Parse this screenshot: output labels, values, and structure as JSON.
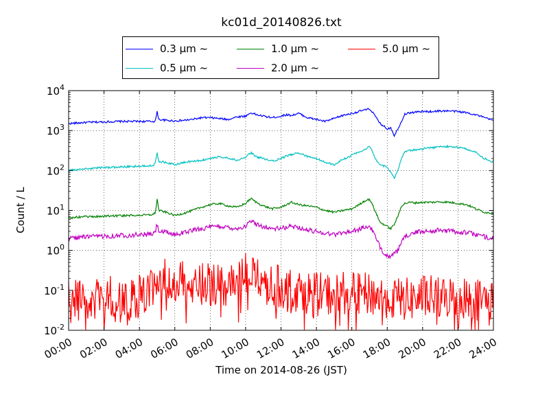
{
  "chart_data": {
    "type": "line",
    "title": "kc01d_20140826.txt",
    "xlabel": "Time on 2014-08-26 (JST)",
    "ylabel": "Count / L",
    "x_ticks": [
      "00:00",
      "02:00",
      "04:00",
      "06:00",
      "08:00",
      "10:00",
      "12:00",
      "14:00",
      "16:00",
      "18:00",
      "20:00",
      "22:00",
      "24:00"
    ],
    "x_range_hours": [
      0,
      24
    ],
    "yscale": "log",
    "ylim": [
      0.01,
      10000
    ],
    "y_ticks": [
      {
        "base": "10",
        "exp": "-2"
      },
      {
        "base": "10",
        "exp": "-1"
      },
      {
        "base": "10",
        "exp": "0"
      },
      {
        "base": "10",
        "exp": "1"
      },
      {
        "base": "10",
        "exp": "2"
      },
      {
        "base": "10",
        "exp": "3"
      },
      {
        "base": "10",
        "exp": "4"
      }
    ],
    "grid": true,
    "legend_position": "top-center",
    "series": [
      {
        "name": "0.3 μm ~",
        "color": "#0000ff",
        "x": [
          0,
          1,
          2,
          3,
          4,
          4.5,
          4.8,
          4.9,
          5.0,
          5.1,
          5.5,
          6,
          6.5,
          7,
          7.5,
          8,
          8.5,
          9,
          9.5,
          10,
          10.3,
          10.6,
          11,
          11.5,
          12,
          12.3,
          12.6,
          13,
          13.5,
          14,
          14.5,
          15,
          15.5,
          16,
          16.3,
          16.6,
          16.8,
          17,
          17.2,
          17.4,
          17.6,
          17.8,
          18,
          18.2,
          18.4,
          18.6,
          18.8,
          19,
          19.3,
          19.6,
          20,
          20.5,
          21,
          21.5,
          22,
          22.5,
          23,
          23.5,
          24
        ],
        "y": [
          1500,
          1600,
          1650,
          1700,
          1700,
          1700,
          1700,
          1750,
          2900,
          1900,
          1800,
          1750,
          1800,
          1900,
          2100,
          2100,
          2000,
          1900,
          2200,
          2300,
          2800,
          2500,
          2300,
          2100,
          2300,
          2500,
          2400,
          2700,
          2100,
          1900,
          1700,
          2000,
          2400,
          2700,
          2900,
          3200,
          3300,
          3500,
          2800,
          2000,
          1500,
          1300,
          1100,
          1200,
          750,
          1100,
          1700,
          2600,
          2800,
          2900,
          3000,
          3000,
          3100,
          3100,
          3000,
          2800,
          2500,
          2100,
          1800
        ]
      },
      {
        "name": "0.5 μm ~",
        "color": "#00bfbf",
        "x": [
          0,
          0.5,
          1,
          1.5,
          2,
          2.5,
          3,
          3.5,
          4,
          4.5,
          4.8,
          4.9,
          5.0,
          5.1,
          5.5,
          6,
          6.5,
          7,
          7.5,
          8,
          8.5,
          9,
          9.5,
          10,
          10.3,
          10.6,
          11,
          11.5,
          12,
          12.3,
          12.6,
          13,
          13.5,
          14,
          14.5,
          15,
          15.5,
          16,
          16.3,
          16.6,
          16.8,
          17,
          17.2,
          17.4,
          17.6,
          17.8,
          18,
          18.2,
          18.4,
          18.6,
          18.8,
          19,
          19.3,
          19.6,
          20,
          20.5,
          21,
          21.5,
          22,
          22.5,
          23,
          23.5,
          24
        ],
        "y": [
          100,
          105,
          110,
          115,
          120,
          120,
          125,
          125,
          130,
          130,
          140,
          160,
          280,
          170,
          160,
          140,
          160,
          170,
          180,
          200,
          220,
          210,
          180,
          210,
          280,
          220,
          200,
          170,
          200,
          230,
          250,
          280,
          220,
          200,
          160,
          140,
          190,
          240,
          280,
          310,
          350,
          400,
          270,
          180,
          140,
          130,
          120,
          90,
          65,
          100,
          200,
          300,
          320,
          330,
          350,
          370,
          400,
          400,
          390,
          340,
          290,
          200,
          160
        ]
      },
      {
        "name": "1.0 μm ~",
        "color": "#008000",
        "x": [
          0,
          0.5,
          1,
          1.5,
          2,
          2.5,
          3,
          3.5,
          4,
          4.5,
          4.8,
          4.9,
          5.0,
          5.1,
          5.5,
          6,
          6.5,
          7,
          7.5,
          8,
          8.5,
          9,
          9.5,
          10,
          10.3,
          10.6,
          11,
          11.5,
          12,
          12.3,
          12.6,
          13,
          13.5,
          14,
          14.5,
          15,
          15.5,
          16,
          16.3,
          16.6,
          16.8,
          17,
          17.2,
          17.4,
          17.6,
          17.8,
          18,
          18.2,
          18.4,
          18.6,
          18.8,
          19,
          19.3,
          19.6,
          20,
          20.5,
          21,
          21.5,
          22,
          22.5,
          23,
          23.5,
          24
        ],
        "y": [
          6.5,
          6.8,
          7,
          7,
          7.2,
          7.3,
          7.4,
          7.5,
          7.6,
          7.7,
          8,
          9,
          19,
          10,
          9,
          7.5,
          8.5,
          10,
          12,
          14,
          15,
          13,
          12,
          15,
          20,
          16,
          13,
          11,
          12,
          14,
          16,
          14,
          13,
          12,
          10,
          9,
          10,
          11,
          13,
          16,
          18,
          19,
          13,
          8,
          5,
          4.5,
          4,
          3.5,
          4.5,
          7,
          13,
          15,
          16,
          15.5,
          16,
          16,
          16.5,
          16,
          15,
          14,
          11,
          9,
          8.5
        ]
      },
      {
        "name": "2.0 μm ~",
        "color": "#bf00bf",
        "x": [
          0,
          0.5,
          1,
          1.5,
          2,
          2.5,
          3,
          3.5,
          4,
          4.5,
          4.8,
          4.9,
          5.0,
          5.1,
          5.5,
          6,
          6.5,
          7,
          7.5,
          8,
          8.5,
          9,
          9.5,
          10,
          10.3,
          10.6,
          11,
          11.5,
          12,
          12.3,
          12.6,
          13,
          13.5,
          14,
          14.5,
          15,
          15.5,
          16,
          16.3,
          16.6,
          16.8,
          17,
          17.2,
          17.4,
          17.6,
          17.8,
          18,
          18.2,
          18.4,
          18.6,
          18.8,
          19,
          19.3,
          19.6,
          20,
          20.5,
          21,
          21.5,
          22,
          22.5,
          23,
          23.5,
          24
        ],
        "y": [
          2.0,
          2.1,
          2.2,
          2.2,
          2.3,
          2.3,
          2.4,
          2.4,
          2.5,
          2.5,
          2.6,
          3,
          4.5,
          3,
          2.8,
          2.5,
          2.8,
          3.2,
          3.5,
          3.8,
          4,
          3.8,
          3.5,
          4,
          5.5,
          4.5,
          4,
          3.5,
          3.5,
          3.8,
          4,
          3.8,
          3.2,
          3,
          2.7,
          2.5,
          2.8,
          3,
          3.3,
          3.6,
          3.8,
          4,
          3,
          1.8,
          1.2,
          0.9,
          0.75,
          0.7,
          0.8,
          1.0,
          1.5,
          2.2,
          2.6,
          2.8,
          3,
          3.1,
          3.2,
          3.1,
          2.9,
          2.8,
          2.5,
          2.2,
          2.0
        ]
      },
      {
        "name": "5.0 μm ~",
        "color": "#ff0000",
        "x": [
          0,
          0.5,
          1,
          1.5,
          2,
          2.5,
          3,
          3.5,
          4,
          4.5,
          5,
          5.5,
          6,
          6.5,
          7,
          7.5,
          8,
          8.5,
          9,
          9.5,
          10,
          10.3,
          10.6,
          11,
          11.5,
          12,
          12.5,
          13,
          13.5,
          14,
          14.5,
          15,
          15.5,
          16,
          16.5,
          17,
          17.5,
          18,
          18.5,
          19,
          19.5,
          20,
          20.5,
          21,
          21.5,
          22,
          22.5,
          23,
          23.5,
          24
        ],
        "y": [
          0.06,
          0.05,
          0.07,
          0.06,
          0.06,
          0.07,
          0.05,
          0.06,
          0.07,
          0.08,
          0.12,
          0.2,
          0.18,
          0.15,
          0.16,
          0.15,
          0.14,
          0.15,
          0.13,
          0.18,
          0.25,
          0.3,
          0.22,
          0.15,
          0.13,
          0.12,
          0.11,
          0.1,
          0.09,
          0.08,
          0.08,
          0.08,
          0.09,
          0.08,
          0.08,
          0.08,
          0.07,
          0.07,
          0.06,
          0.06,
          0.06,
          0.07,
          0.07,
          0.06,
          0.07,
          0.06,
          0.07,
          0.06,
          0.06,
          0.06
        ]
      }
    ]
  }
}
